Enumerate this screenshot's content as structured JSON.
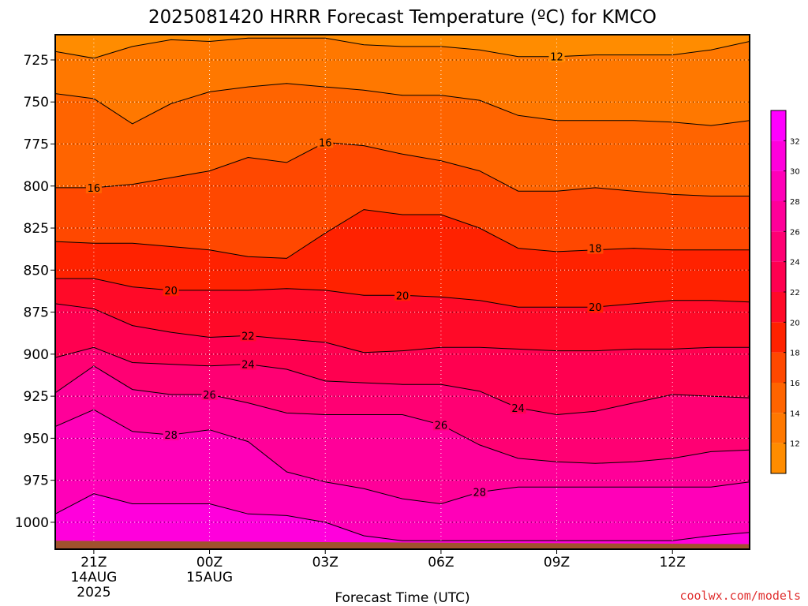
{
  "chart_data": {
    "type": "contour",
    "title": "2025081420 HRRR Forecast Temperature (ºC) for KMCO",
    "xlabel": "Forecast Time (UTC)",
    "ylabel": "",
    "credit": "coolwx.com/models",
    "x_ticks": [
      {
        "hour": 0,
        "label": "21Z",
        "sub1": "14AUG",
        "sub2": "2025"
      },
      {
        "hour": 3,
        "label": "00Z",
        "sub1": "15AUG",
        "sub2": ""
      },
      {
        "hour": 6,
        "label": "03Z",
        "sub1": "",
        "sub2": ""
      },
      {
        "hour": 9,
        "label": "06Z",
        "sub1": "",
        "sub2": ""
      },
      {
        "hour": 12,
        "label": "09Z",
        "sub1": "",
        "sub2": ""
      },
      {
        "hour": 15,
        "label": "12Z",
        "sub1": "",
        "sub2": ""
      }
    ],
    "xlim": [
      -1,
      17
    ],
    "y_ticks": [
      725,
      750,
      775,
      800,
      825,
      850,
      875,
      900,
      925,
      950,
      975,
      1000
    ],
    "ylim": [
      710,
      1016
    ],
    "ground_color": "#a0522d",
    "contour_levels": [
      12,
      14,
      16,
      18,
      20,
      22,
      24,
      26,
      28,
      30
    ],
    "colorbar_ticks": [
      12,
      14,
      16,
      18,
      20,
      22,
      24,
      26,
      28,
      30,
      32
    ],
    "colorbar_colors": [
      "#ff8c00",
      "#ff7800",
      "#ff6400",
      "#ff4800",
      "#ff2200",
      "#ff0a28",
      "#ff0050",
      "#ff0073",
      "#ff0099",
      "#ff00b8",
      "#ff00dc",
      "#ff00ff"
    ],
    "contours": [
      {
        "level": 12,
        "points": [
          [
            -1,
            720
          ],
          [
            0,
            724
          ],
          [
            1,
            717
          ],
          [
            2,
            713
          ],
          [
            3,
            714
          ],
          [
            4,
            712
          ],
          [
            5,
            712
          ],
          [
            6,
            712
          ],
          [
            7,
            716
          ],
          [
            8,
            717
          ],
          [
            9,
            717
          ],
          [
            10,
            719
          ],
          [
            11,
            723
          ],
          [
            12,
            723
          ],
          [
            13,
            722
          ],
          [
            14,
            722
          ],
          [
            15,
            722
          ],
          [
            16,
            719
          ],
          [
            17,
            714
          ]
        ],
        "labels": [
          [
            12.0,
            723
          ]
        ]
      },
      {
        "level": 14,
        "points": [
          [
            -1,
            745
          ],
          [
            0,
            748
          ],
          [
            1,
            763
          ],
          [
            2,
            751
          ],
          [
            3,
            744
          ],
          [
            4,
            741
          ],
          [
            5,
            739
          ],
          [
            6,
            741
          ],
          [
            7,
            743
          ],
          [
            8,
            746
          ],
          [
            9,
            746
          ],
          [
            10,
            749
          ],
          [
            11,
            758
          ],
          [
            12,
            761
          ],
          [
            13,
            761
          ],
          [
            14,
            761
          ],
          [
            15,
            762
          ],
          [
            16,
            764
          ],
          [
            17,
            761
          ]
        ],
        "labels": []
      },
      {
        "level": 16,
        "points": [
          [
            -1,
            801
          ],
          [
            0,
            801
          ],
          [
            1,
            799
          ],
          [
            2,
            795
          ],
          [
            3,
            791
          ],
          [
            4,
            783
          ],
          [
            5,
            786
          ],
          [
            6,
            774
          ],
          [
            7,
            776
          ],
          [
            8,
            781
          ],
          [
            9,
            785
          ],
          [
            10,
            791
          ],
          [
            11,
            803
          ],
          [
            12,
            803
          ],
          [
            13,
            801
          ],
          [
            14,
            803
          ],
          [
            15,
            805
          ],
          [
            16,
            806
          ],
          [
            17,
            806
          ]
        ],
        "labels": [
          [
            0.0,
            801
          ],
          [
            6.0,
            774
          ]
        ]
      },
      {
        "level": 18,
        "points": [
          [
            -1,
            833
          ],
          [
            0,
            834
          ],
          [
            1,
            834
          ],
          [
            2,
            836
          ],
          [
            3,
            838
          ],
          [
            4,
            842
          ],
          [
            5,
            843
          ],
          [
            6,
            828
          ],
          [
            7,
            814
          ],
          [
            8,
            817
          ],
          [
            9,
            817
          ],
          [
            10,
            825
          ],
          [
            11,
            837
          ],
          [
            12,
            839
          ],
          [
            13,
            838
          ],
          [
            14,
            837
          ],
          [
            15,
            838
          ],
          [
            16,
            838
          ],
          [
            17,
            838
          ]
        ],
        "labels": [
          [
            13.0,
            837
          ]
        ]
      },
      {
        "level": 20,
        "points": [
          [
            -1,
            855
          ],
          [
            0,
            855
          ],
          [
            1,
            860
          ],
          [
            2,
            862
          ],
          [
            3,
            862
          ],
          [
            4,
            862
          ],
          [
            5,
            861
          ],
          [
            6,
            862
          ],
          [
            7,
            865
          ],
          [
            8,
            865
          ],
          [
            9,
            866
          ],
          [
            10,
            868
          ],
          [
            11,
            872
          ],
          [
            12,
            872
          ],
          [
            13,
            872
          ],
          [
            14,
            870
          ],
          [
            15,
            868
          ],
          [
            16,
            868
          ],
          [
            17,
            869
          ]
        ],
        "labels": [
          [
            2.0,
            862
          ],
          [
            8.0,
            865
          ],
          [
            13.0,
            872
          ]
        ]
      },
      {
        "level": 22,
        "points": [
          [
            -1,
            870
          ],
          [
            0,
            873
          ],
          [
            1,
            883
          ],
          [
            2,
            887
          ],
          [
            3,
            890
          ],
          [
            4,
            889
          ],
          [
            5,
            891
          ],
          [
            6,
            893
          ],
          [
            7,
            899
          ],
          [
            8,
            898
          ],
          [
            9,
            896
          ],
          [
            10,
            896
          ],
          [
            11,
            897
          ],
          [
            12,
            898
          ],
          [
            13,
            898
          ],
          [
            14,
            897
          ],
          [
            15,
            897
          ],
          [
            16,
            896
          ],
          [
            17,
            896
          ]
        ],
        "labels": [
          [
            4.0,
            889
          ]
        ]
      },
      {
        "level": 24,
        "points": [
          [
            -1,
            902
          ],
          [
            0,
            896
          ],
          [
            1,
            905
          ],
          [
            2,
            906
          ],
          [
            3,
            907
          ],
          [
            4,
            906
          ],
          [
            5,
            909
          ],
          [
            6,
            916
          ],
          [
            7,
            917
          ],
          [
            8,
            918
          ],
          [
            9,
            918
          ],
          [
            10,
            922
          ],
          [
            11,
            932
          ],
          [
            12,
            936
          ],
          [
            13,
            934
          ],
          [
            14,
            929
          ],
          [
            15,
            924
          ],
          [
            16,
            925
          ],
          [
            17,
            926
          ]
        ],
        "labels": [
          [
            4.0,
            906
          ],
          [
            11.0,
            932
          ]
        ]
      },
      {
        "level": 26,
        "points": [
          [
            -1,
            923
          ],
          [
            0,
            907
          ],
          [
            1,
            921
          ],
          [
            2,
            924
          ],
          [
            3,
            924
          ],
          [
            4,
            929
          ],
          [
            5,
            935
          ],
          [
            6,
            936
          ],
          [
            7,
            936
          ],
          [
            8,
            936
          ],
          [
            9,
            942
          ],
          [
            10,
            954
          ],
          [
            11,
            962
          ],
          [
            12,
            964
          ],
          [
            13,
            965
          ],
          [
            14,
            964
          ],
          [
            15,
            962
          ],
          [
            16,
            958
          ],
          [
            17,
            957
          ]
        ],
        "labels": [
          [
            3.0,
            924
          ],
          [
            9.0,
            942
          ]
        ]
      },
      {
        "level": 28,
        "points": [
          [
            -1,
            943
          ],
          [
            0,
            933
          ],
          [
            1,
            946
          ],
          [
            2,
            948
          ],
          [
            3,
            945
          ],
          [
            4,
            952
          ],
          [
            5,
            970
          ],
          [
            6,
            976
          ],
          [
            7,
            980
          ],
          [
            8,
            986
          ],
          [
            9,
            989
          ],
          [
            10,
            982
          ],
          [
            11,
            979
          ],
          [
            12,
            979
          ],
          [
            13,
            979
          ],
          [
            14,
            979
          ],
          [
            15,
            979
          ],
          [
            16,
            979
          ],
          [
            17,
            976
          ]
        ],
        "labels": [
          [
            2.0,
            948
          ],
          [
            10.0,
            982
          ]
        ]
      },
      {
        "level": 30,
        "points": [
          [
            -1,
            995
          ],
          [
            0,
            983
          ],
          [
            1,
            989
          ],
          [
            2,
            989
          ],
          [
            3,
            989
          ],
          [
            4,
            995
          ],
          [
            5,
            996
          ],
          [
            6,
            1000
          ],
          [
            7,
            1008
          ],
          [
            8,
            1011
          ],
          [
            9,
            1011
          ],
          [
            10,
            1011
          ],
          [
            11,
            1011
          ],
          [
            12,
            1011
          ],
          [
            13,
            1011
          ],
          [
            14,
            1011
          ],
          [
            15,
            1011
          ],
          [
            16,
            1008
          ],
          [
            17,
            1006
          ]
        ],
        "labels": []
      }
    ],
    "grid": true
  }
}
